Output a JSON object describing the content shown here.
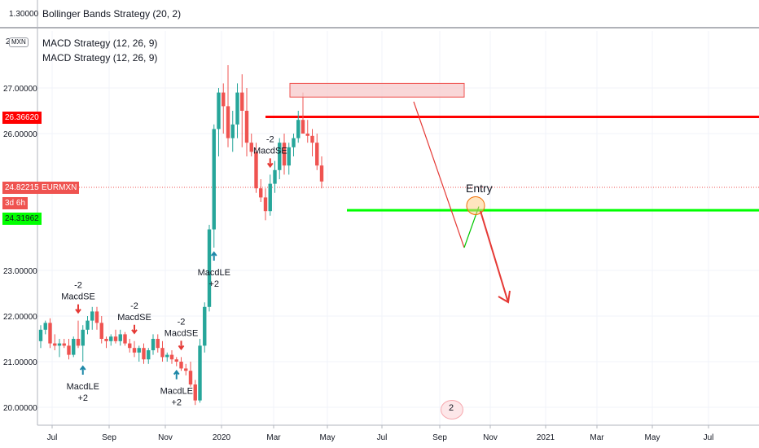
{
  "upper_pane": {
    "title": "Bollinger Bands Strategy (20, 2)",
    "scale_label": "1.30000"
  },
  "main_pane": {
    "indicators": [
      "MACD Strategy (12, 26, 9)",
      "MACD Strategy (12, 26, 9)"
    ],
    "symbol_badge": "MXN",
    "scale_prefix": "2",
    "current_price": "24.82215",
    "symbol_tag": "EURMXN",
    "countdown": "3d 6h",
    "resistance_price": "26.36620",
    "support_price": "24.31962",
    "entry_label": "Entry",
    "bottom_badge": "2"
  },
  "colors": {
    "up": "#26a69a",
    "down": "#ef5350",
    "resistance": "#ff0000",
    "support": "#00ff00",
    "projection_up": "#00c800",
    "arrow": "#e53935",
    "zone_fill": "#f7c9cb"
  },
  "chart_data": {
    "type": "candlestick",
    "y_ticks": [
      "20.00000",
      "21.00000",
      "22.00000",
      "23.00000",
      "26.00000",
      "27.00000"
    ],
    "y_range": [
      19.6,
      28.3
    ],
    "x_ticks": [
      "Jul",
      "Sep",
      "Nov",
      "2020",
      "Mar",
      "May",
      "Jul",
      "Sep",
      "Nov",
      "2021",
      "Mar",
      "May",
      "Jul"
    ],
    "series": [
      {
        "d": 0,
        "o": 21.45,
        "h": 21.8,
        "l": 21.3,
        "c": 21.7
      },
      {
        "d": 1,
        "o": 21.7,
        "h": 21.9,
        "l": 21.6,
        "c": 21.85
      },
      {
        "d": 2,
        "o": 21.85,
        "h": 21.95,
        "l": 21.3,
        "c": 21.4
      },
      {
        "d": 3,
        "o": 21.4,
        "h": 21.6,
        "l": 21.25,
        "c": 21.35
      },
      {
        "d": 4,
        "o": 21.35,
        "h": 21.5,
        "l": 21.1,
        "c": 21.4
      },
      {
        "d": 5,
        "o": 21.4,
        "h": 21.5,
        "l": 21.3,
        "c": 21.35
      },
      {
        "d": 6,
        "o": 21.35,
        "h": 21.5,
        "l": 21.05,
        "c": 21.15
      },
      {
        "d": 7,
        "o": 21.15,
        "h": 21.55,
        "l": 21.1,
        "c": 21.5
      },
      {
        "d": 8,
        "o": 21.5,
        "h": 21.9,
        "l": 21.3,
        "c": 21.35
      },
      {
        "d": 9,
        "o": 21.35,
        "h": 21.8,
        "l": 21.0,
        "c": 21.7
      },
      {
        "d": 10,
        "o": 21.7,
        "h": 22.0,
        "l": 21.6,
        "c": 21.9
      },
      {
        "d": 11,
        "o": 21.9,
        "h": 22.2,
        "l": 21.7,
        "c": 22.1
      },
      {
        "d": 12,
        "o": 22.1,
        "h": 22.2,
        "l": 21.7,
        "c": 21.85
      },
      {
        "d": 13,
        "o": 21.85,
        "h": 22.0,
        "l": 21.4,
        "c": 21.5
      },
      {
        "d": 14,
        "o": 21.5,
        "h": 21.55,
        "l": 21.3,
        "c": 21.45
      },
      {
        "d": 15,
        "o": 21.45,
        "h": 21.6,
        "l": 21.35,
        "c": 21.55
      },
      {
        "d": 16,
        "o": 21.55,
        "h": 21.7,
        "l": 21.4,
        "c": 21.45
      },
      {
        "d": 17,
        "o": 21.45,
        "h": 21.7,
        "l": 21.35,
        "c": 21.6
      },
      {
        "d": 18,
        "o": 21.6,
        "h": 21.65,
        "l": 21.35,
        "c": 21.4
      },
      {
        "d": 19,
        "o": 21.4,
        "h": 21.5,
        "l": 21.2,
        "c": 21.3
      },
      {
        "d": 20,
        "o": 21.3,
        "h": 21.45,
        "l": 21.1,
        "c": 21.2
      },
      {
        "d": 21,
        "o": 21.2,
        "h": 21.35,
        "l": 21.0,
        "c": 21.3
      },
      {
        "d": 22,
        "o": 21.3,
        "h": 21.4,
        "l": 20.95,
        "c": 21.05
      },
      {
        "d": 23,
        "o": 21.05,
        "h": 21.3,
        "l": 20.95,
        "c": 21.25
      },
      {
        "d": 24,
        "o": 21.25,
        "h": 21.6,
        "l": 21.15,
        "c": 21.5
      },
      {
        "d": 25,
        "o": 21.5,
        "h": 21.6,
        "l": 21.2,
        "c": 21.3
      },
      {
        "d": 26,
        "o": 21.3,
        "h": 21.45,
        "l": 21.0,
        "c": 21.1
      },
      {
        "d": 27,
        "o": 21.1,
        "h": 21.2,
        "l": 21.0,
        "c": 21.15
      },
      {
        "d": 28,
        "o": 21.15,
        "h": 21.25,
        "l": 20.95,
        "c": 21.05
      },
      {
        "d": 29,
        "o": 21.05,
        "h": 21.1,
        "l": 20.9,
        "c": 21.0
      },
      {
        "d": 30,
        "o": 21.0,
        "h": 21.1,
        "l": 20.8,
        "c": 20.85
      },
      {
        "d": 31,
        "o": 20.85,
        "h": 20.95,
        "l": 20.7,
        "c": 20.8
      },
      {
        "d": 32,
        "o": 20.8,
        "h": 21.0,
        "l": 20.45,
        "c": 20.5
      },
      {
        "d": 33,
        "o": 20.5,
        "h": 20.6,
        "l": 20.05,
        "c": 20.15
      },
      {
        "d": 34,
        "o": 20.15,
        "h": 21.5,
        "l": 20.1,
        "c": 21.35
      },
      {
        "d": 35,
        "o": 21.35,
        "h": 22.3,
        "l": 21.2,
        "c": 22.2
      },
      {
        "d": 36,
        "o": 22.2,
        "h": 24.0,
        "l": 22.1,
        "c": 23.9
      },
      {
        "d": 37,
        "o": 23.9,
        "h": 26.2,
        "l": 23.5,
        "c": 26.1
      },
      {
        "d": 38,
        "o": 26.1,
        "h": 27.0,
        "l": 25.5,
        "c": 26.9
      },
      {
        "d": 39,
        "o": 26.9,
        "h": 27.1,
        "l": 26.0,
        "c": 26.6
      },
      {
        "d": 40,
        "o": 26.6,
        "h": 27.5,
        "l": 25.7,
        "c": 25.9
      },
      {
        "d": 41,
        "o": 25.9,
        "h": 26.5,
        "l": 25.6,
        "c": 26.2
      },
      {
        "d": 42,
        "o": 26.2,
        "h": 27.1,
        "l": 25.9,
        "c": 26.9
      },
      {
        "d": 43,
        "o": 26.9,
        "h": 27.3,
        "l": 25.7,
        "c": 26.5
      },
      {
        "d": 44,
        "o": 26.5,
        "h": 27.0,
        "l": 25.5,
        "c": 25.8
      },
      {
        "d": 45,
        "o": 25.8,
        "h": 26.0,
        "l": 25.5,
        "c": 25.6
      },
      {
        "d": 46,
        "o": 25.6,
        "h": 25.8,
        "l": 24.7,
        "c": 24.8
      },
      {
        "d": 47,
        "o": 24.8,
        "h": 25.0,
        "l": 24.5,
        "c": 24.6
      },
      {
        "d": 48,
        "o": 24.6,
        "h": 24.8,
        "l": 24.1,
        "c": 24.3
      },
      {
        "d": 49,
        "o": 24.3,
        "h": 25.1,
        "l": 24.2,
        "c": 24.9
      },
      {
        "d": 50,
        "o": 24.9,
        "h": 25.4,
        "l": 24.7,
        "c": 25.2
      },
      {
        "d": 51,
        "o": 25.2,
        "h": 25.9,
        "l": 25.0,
        "c": 25.8
      },
      {
        "d": 52,
        "o": 25.8,
        "h": 26.0,
        "l": 25.1,
        "c": 25.3
      },
      {
        "d": 53,
        "o": 25.3,
        "h": 25.8,
        "l": 25.1,
        "c": 25.7
      },
      {
        "d": 54,
        "o": 25.7,
        "h": 26.0,
        "l": 25.5,
        "c": 25.9
      },
      {
        "d": 55,
        "o": 25.9,
        "h": 26.5,
        "l": 25.8,
        "c": 26.3
      },
      {
        "d": 56,
        "o": 26.3,
        "h": 26.9,
        "l": 26.0,
        "c": 26.0
      },
      {
        "d": 57,
        "o": 26.0,
        "h": 26.3,
        "l": 25.8,
        "c": 25.95
      },
      {
        "d": 58,
        "o": 25.95,
        "h": 26.1,
        "l": 25.5,
        "c": 25.8
      },
      {
        "d": 59,
        "o": 25.8,
        "h": 26.0,
        "l": 25.2,
        "c": 25.3
      },
      {
        "d": 60,
        "o": 25.3,
        "h": 25.5,
        "l": 24.8,
        "c": 24.95
      }
    ],
    "annotations": [
      {
        "text": "-2 MacdSE",
        "d": 8
      },
      {
        "text": "-2 MacdSE",
        "d": 20
      },
      {
        "text": "-2 MacdSE",
        "d": 30
      },
      {
        "text": "-2 MacdSE",
        "d": 49
      },
      {
        "text": "MacdLE +2",
        "d": 9
      },
      {
        "text": "MacdLE +2",
        "d": 29
      },
      {
        "text": "MacdLE +2",
        "d": 37
      }
    ]
  }
}
